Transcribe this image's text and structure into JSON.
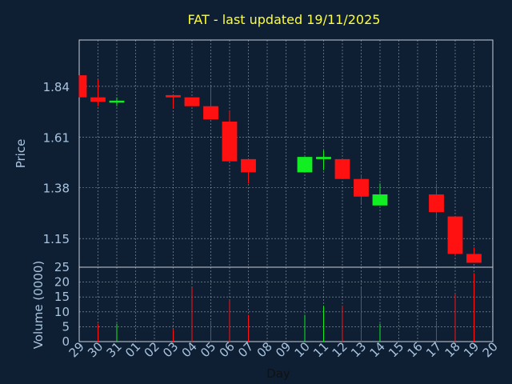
{
  "colors": {
    "background": "#0f1f33",
    "grid": "#c8d2dc",
    "axis_text": "#a9c4de",
    "title": "#ffff33",
    "up": "#11ee22",
    "down": "#ff1111"
  },
  "chart_data": [
    {
      "type": "candlestick",
      "title": "FAT - last updated 19/11/2025",
      "ylabel": "Price",
      "ylim": [
        1.02,
        2.05
      ],
      "yticks": [
        "1.84",
        "1.61",
        "1.38",
        "1.15"
      ],
      "ytick_values": [
        1.84,
        1.61,
        1.38,
        1.15
      ],
      "grid": true,
      "x": [
        "29",
        "30",
        "31",
        "01",
        "02",
        "03",
        "04",
        "05",
        "06",
        "07",
        "08",
        "09",
        "10",
        "11",
        "12",
        "13",
        "14",
        "15",
        "16",
        "17",
        "18",
        "19",
        "20"
      ],
      "candles": [
        {
          "x": "29",
          "open": 1.89,
          "high": 1.89,
          "low": 1.79,
          "close": 1.79,
          "color": "down"
        },
        {
          "x": "30",
          "open": 1.79,
          "high": 1.87,
          "low": 1.75,
          "close": 1.77,
          "color": "down"
        },
        {
          "x": "31",
          "open": 1.77,
          "high": 1.79,
          "low": 1.75,
          "close": 1.775,
          "color": "up"
        },
        {
          "x": "03",
          "open": 1.8,
          "high": 1.8,
          "low": 1.74,
          "close": 1.79,
          "color": "down"
        },
        {
          "x": "04",
          "open": 1.79,
          "high": 1.79,
          "low": 1.75,
          "close": 1.75,
          "color": "down"
        },
        {
          "x": "05",
          "open": 1.75,
          "high": 1.84,
          "low": 1.69,
          "close": 1.69,
          "color": "down"
        },
        {
          "x": "06",
          "open": 1.68,
          "high": 1.73,
          "low": 1.5,
          "close": 1.5,
          "color": "down"
        },
        {
          "x": "07",
          "open": 1.51,
          "high": 1.51,
          "low": 1.4,
          "close": 1.45,
          "color": "down"
        },
        {
          "x": "10",
          "open": 1.45,
          "high": 1.52,
          "low": 1.45,
          "close": 1.52,
          "color": "up"
        },
        {
          "x": "11",
          "open": 1.51,
          "high": 1.55,
          "low": 1.46,
          "close": 1.52,
          "color": "up"
        },
        {
          "x": "12",
          "open": 1.51,
          "high": 1.51,
          "low": 1.42,
          "close": 1.42,
          "color": "down"
        },
        {
          "x": "13",
          "open": 1.42,
          "high": 1.44,
          "low": 1.31,
          "close": 1.34,
          "color": "down"
        },
        {
          "x": "14",
          "open": 1.3,
          "high": 1.4,
          "low": 1.3,
          "close": 1.35,
          "color": "up"
        },
        {
          "x": "17",
          "open": 1.35,
          "high": 1.4,
          "low": 1.24,
          "close": 1.27,
          "color": "down"
        },
        {
          "x": "18",
          "open": 1.25,
          "high": 1.25,
          "low": 1.07,
          "close": 1.08,
          "color": "down"
        },
        {
          "x": "19",
          "open": 1.08,
          "high": 1.11,
          "low": 1.04,
          "close": 1.04,
          "color": "down"
        }
      ]
    },
    {
      "type": "bar",
      "xlabel": "Day",
      "ylabel": "Volume (0000)",
      "ylim": [
        0,
        25
      ],
      "yticks": [
        "0",
        "5",
        "10",
        "15",
        "20",
        "25"
      ],
      "ytick_values": [
        0,
        5,
        10,
        15,
        20,
        25
      ],
      "grid": true,
      "x": [
        "29",
        "30",
        "31",
        "01",
        "02",
        "03",
        "04",
        "05",
        "06",
        "07",
        "08",
        "09",
        "10",
        "11",
        "12",
        "13",
        "14",
        "15",
        "16",
        "17",
        "18",
        "19",
        "20"
      ],
      "volumes": [
        {
          "x": "30",
          "value": 6,
          "color": "down"
        },
        {
          "x": "31",
          "value": 6,
          "color": "up"
        },
        {
          "x": "03",
          "value": 4,
          "color": "down"
        },
        {
          "x": "04",
          "value": 18,
          "color": "down"
        },
        {
          "x": "05",
          "value": 7,
          "color": "down"
        },
        {
          "x": "06",
          "value": 14,
          "color": "down"
        },
        {
          "x": "07",
          "value": 9,
          "color": "down"
        },
        {
          "x": "10",
          "value": 9,
          "color": "up"
        },
        {
          "x": "11",
          "value": 12,
          "color": "up"
        },
        {
          "x": "12",
          "value": 12,
          "color": "down"
        },
        {
          "x": "13",
          "value": 18,
          "color": "down"
        },
        {
          "x": "14",
          "value": 6,
          "color": "up"
        },
        {
          "x": "17",
          "value": 7,
          "color": "down"
        },
        {
          "x": "18",
          "value": 16,
          "color": "down"
        },
        {
          "x": "19",
          "value": 23,
          "color": "down"
        }
      ]
    }
  ]
}
